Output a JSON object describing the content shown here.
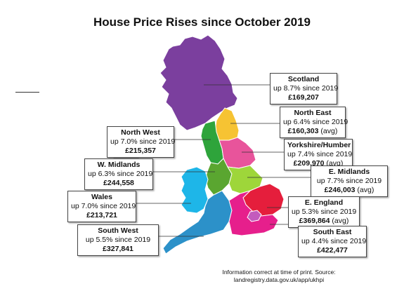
{
  "title": "House Price Rises since October 2019",
  "colors": {
    "scotland": "#7b3f9e",
    "north_east": "#f6c333",
    "north_west": "#2ea43b",
    "yorkshire": "#e8549b",
    "w_midlands": "#5aa630",
    "e_midlands": "#9ed63a",
    "wales": "#1eb6e8",
    "e_england": "#e51e3c",
    "south_west": "#2c91c9",
    "south_east": "#e61f8c",
    "london": "#c35bbd",
    "ireland": "#cfcfcf"
  },
  "regions": [
    {
      "id": "scotland",
      "name": "Scotland",
      "change": "up 8.7% since 2019",
      "price": "£169,207",
      "avg": ""
    },
    {
      "id": "north_east",
      "name": "North East",
      "change": "up 6.4% since 2019",
      "price": "£160,303",
      "avg": "(avg)"
    },
    {
      "id": "north_west",
      "name": "North West",
      "change": "up 7.0% since 2019",
      "price": "£215,357",
      "avg": ""
    },
    {
      "id": "yorkshire",
      "name": "Yorkshire/Humber",
      "change": "up 7.4% since 2019",
      "price": "£209,970",
      "avg": "(avg)"
    },
    {
      "id": "w_midlands",
      "name": "W. Midlands",
      "change": "up 6.3% since 2019",
      "price": "£244,558",
      "avg": ""
    },
    {
      "id": "e_midlands",
      "name": "E. Midlands",
      "change": "up 7.7% since 2019",
      "price": "£246,003",
      "avg": "(avg)"
    },
    {
      "id": "wales",
      "name": "Wales",
      "change": "up 7.0% since 2019",
      "price": "£213,721",
      "avg": ""
    },
    {
      "id": "e_england",
      "name": "E. England",
      "change": "up 5.3% since 2019",
      "price": "£369,864",
      "avg": "(avg)"
    },
    {
      "id": "south_west",
      "name": "South West",
      "change": "up 5.5% since 2019",
      "price": "£327,841",
      "avg": ""
    },
    {
      "id": "south_east",
      "name": "South East",
      "change": "up 4.4% since 2019",
      "price": "£422,477",
      "avg": ""
    }
  ],
  "source": {
    "line1": "Information correct at time of print. Source:",
    "line2": "landregistry.data.gov.uk/app/ukhpi"
  }
}
